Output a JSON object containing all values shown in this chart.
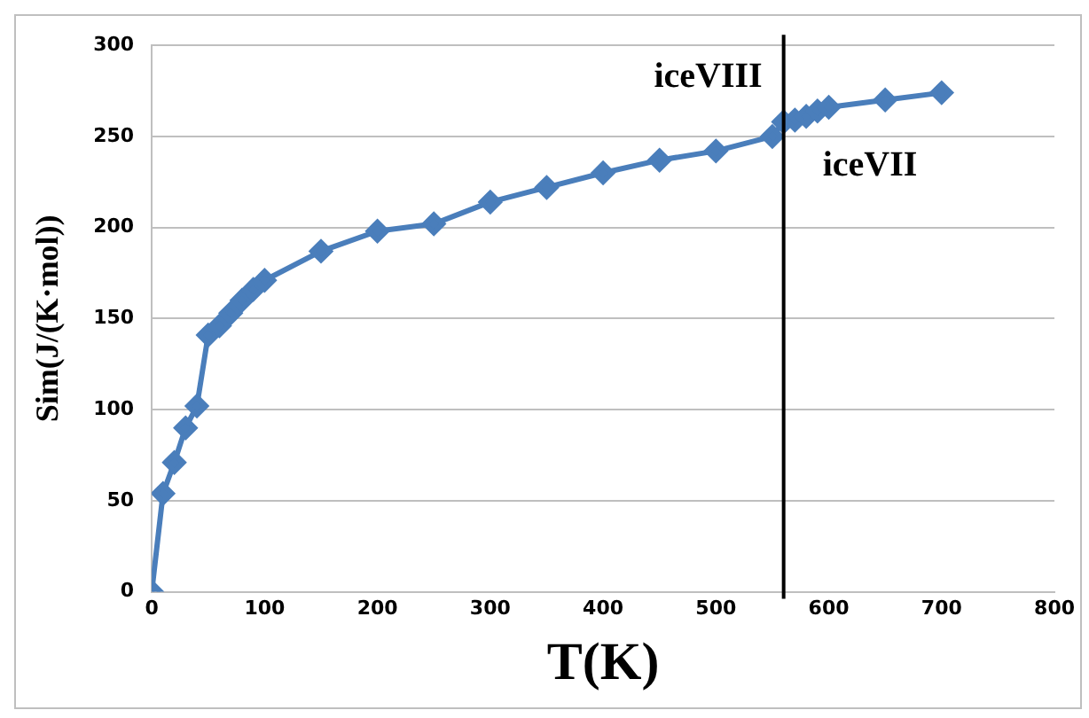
{
  "chart_data": {
    "type": "line",
    "xlabel": "T(K)",
    "ylabel": "Sim(J/(K·mol))",
    "x": [
      0,
      10,
      20,
      30,
      40,
      50,
      60,
      70,
      80,
      90,
      100,
      150,
      200,
      250,
      300,
      350,
      400,
      450,
      500,
      550,
      560,
      570,
      580,
      590,
      600,
      650,
      700
    ],
    "series": [
      {
        "color": "#4a7ebb",
        "values": [
          0,
          54,
          71,
          90,
          102,
          141,
          146,
          153,
          160,
          166,
          171,
          187,
          198,
          202,
          214,
          222,
          230,
          237,
          242,
          250,
          258,
          259,
          261,
          264,
          266,
          270,
          274
        ]
      }
    ],
    "xlim": [
      0,
      800
    ],
    "xticks": [
      0,
      100,
      200,
      300,
      400,
      500,
      600,
      700,
      800
    ],
    "ylim": [
      0,
      300
    ],
    "yticks": [
      0,
      50,
      100,
      150,
      200,
      250,
      300
    ],
    "grid": "y",
    "legend": false,
    "marker": "diamond",
    "line_style": "solid",
    "ref_lines": [
      {
        "axis": "x",
        "value": 560,
        "color": "#000000"
      }
    ],
    "annotations": [
      "iceVIII",
      "iceVII"
    ]
  }
}
